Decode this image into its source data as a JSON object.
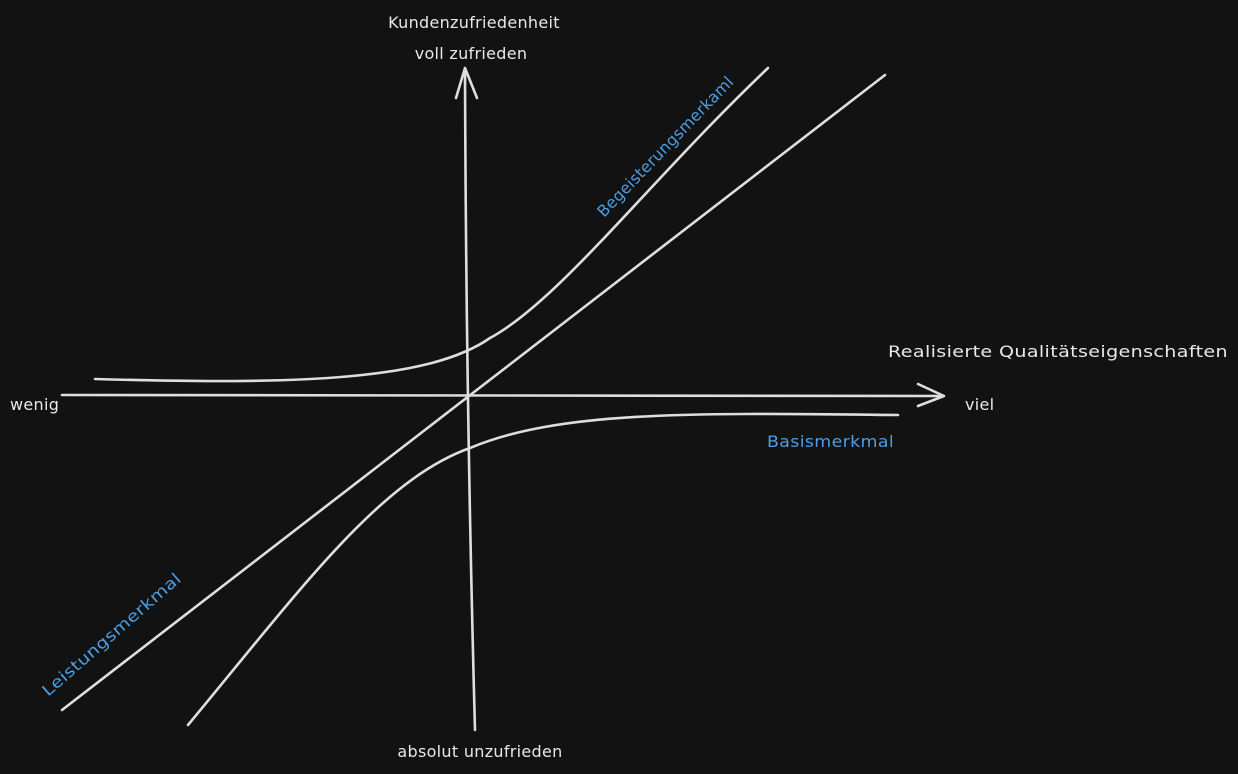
{
  "axes": {
    "y_title": "Kundenzufriedenheit",
    "y_top": "voll zufrieden",
    "y_bottom": "absolut unzufrieden",
    "x_title": "Realisierte Qualitätseigenschaften",
    "x_left": "wenig",
    "x_right": "viel"
  },
  "curves": {
    "excitement": "Begeisterungsmerkaml",
    "performance": "Leistungsmerkmal",
    "basic": "Basismerkmal"
  },
  "colors": {
    "background": "#121212",
    "stroke": "#dedede",
    "axis_text": "#e8e8e8",
    "curve_label": "#4a9fe8"
  }
}
